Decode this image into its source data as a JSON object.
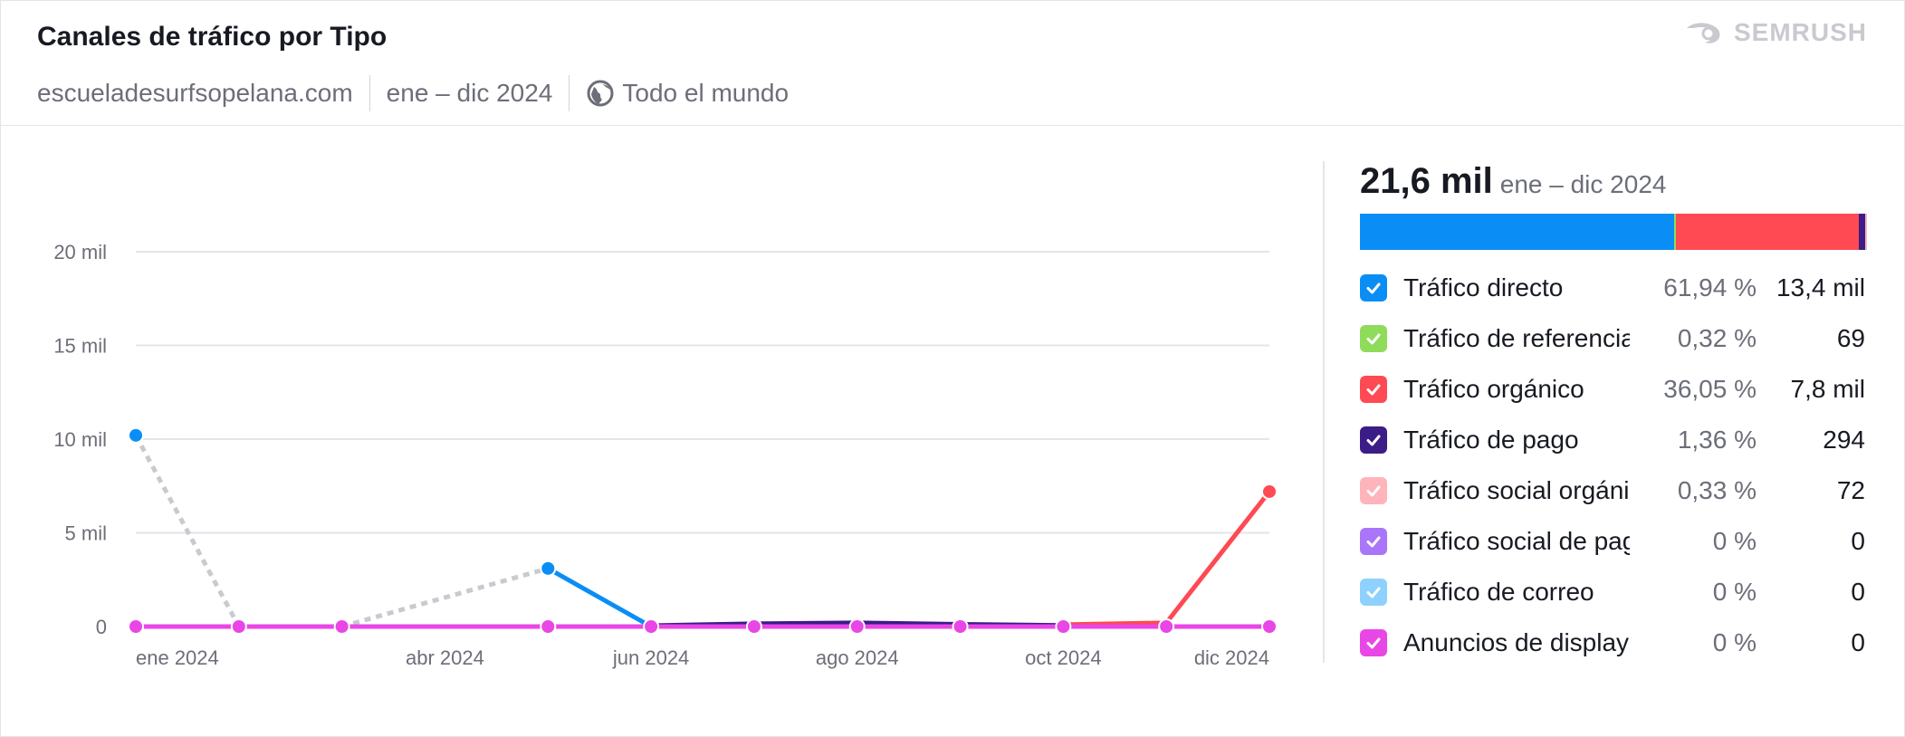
{
  "header": {
    "title": "Canales de tráfico por Tipo",
    "domain": "escueladesurfsopelana.com",
    "period": "ene – dic 2024",
    "region": "Todo el mundo",
    "brand": "SEMRUSH"
  },
  "summary": {
    "total": "21,6 mil",
    "period": "ene – dic 2024"
  },
  "legend": [
    {
      "name": "Tráfico directo",
      "pct": "61,94 %",
      "value": "13,4 mil",
      "color": "#0a8ef5",
      "share": 61.94
    },
    {
      "name": "Tráfico de referencia",
      "pct": "0,32 %",
      "value": "69",
      "color": "#8fdb5a",
      "share": 0.32
    },
    {
      "name": "Tráfico orgánico",
      "pct": "36,05 %",
      "value": "7,8 mil",
      "color": "#ff4953",
      "share": 36.05
    },
    {
      "name": "Tráfico de pago",
      "pct": "1,36 %",
      "value": "294",
      "color": "#3c1c86",
      "share": 1.36
    },
    {
      "name": "Tráfico social orgánico",
      "pct": "0,33 %",
      "value": "72",
      "color": "#ffb3ba",
      "share": 0.33
    },
    {
      "name": "Tráfico social de pago",
      "pct": "0 %",
      "value": "0",
      "color": "#a975fb",
      "share": 0
    },
    {
      "name": "Tráfico de correo",
      "pct": "0 %",
      "value": "0",
      "color": "#8ed1ff",
      "share": 0
    },
    {
      "name": "Anuncios de display",
      "pct": "0 %",
      "value": "0",
      "color": "#e946e6",
      "share": 0
    }
  ],
  "chart_data": {
    "type": "line",
    "x": [
      "ene 2024",
      "feb 2024",
      "mar 2024",
      "abr 2024",
      "may 2024",
      "jun 2024",
      "jul 2024",
      "ago 2024",
      "sep 2024",
      "oct 2024",
      "nov 2024",
      "dic 2024"
    ],
    "x_tick_labels": [
      "ene 2024",
      "abr 2024",
      "jun 2024",
      "ago 2024",
      "oct 2024",
      "dic 2024"
    ],
    "y_tick_labels": [
      "0",
      "5 mil",
      "10 mil",
      "15 mil",
      "20 mil"
    ],
    "ylim": [
      0,
      20000
    ],
    "grid": true,
    "series": [
      {
        "name": "Tráfico directo",
        "color": "#0a8ef5",
        "values": [
          10200,
          null,
          null,
          null,
          3100,
          0,
          null,
          null,
          null,
          null,
          null,
          null
        ],
        "markers": [
          0,
          4
        ]
      },
      {
        "name": "Tráfico orgánico",
        "color": "#ff4953",
        "values": [
          null,
          null,
          null,
          null,
          null,
          null,
          null,
          null,
          null,
          100,
          200,
          7200
        ],
        "markers": [
          11
        ]
      },
      {
        "name": "Tráfico de pago",
        "color": "#3c1c86",
        "values": [
          null,
          null,
          null,
          null,
          null,
          50,
          150,
          200,
          120,
          60,
          null,
          null
        ],
        "markers": []
      },
      {
        "name": "Anuncios de display",
        "color": "#e946e6",
        "values": [
          0,
          0,
          0,
          0,
          0,
          0,
          0,
          0,
          0,
          0,
          0,
          0
        ],
        "markers": [
          0,
          1,
          2,
          4,
          5,
          6,
          7,
          8,
          9,
          10,
          11
        ]
      }
    ],
    "missing_data_segments": [
      {
        "from_x": "ene 2024",
        "from_y": 10200,
        "to_x": "feb 2024",
        "to_y": 0
      },
      {
        "from_x": "feb 2024",
        "from_y": 0,
        "to_x": "mar 2024",
        "to_y": 0
      },
      {
        "from_x": "mar 2024",
        "from_y": 0,
        "to_x": "may 2024",
        "to_y": 3100
      },
      {
        "from_x": "ene 2024",
        "from_y": 0,
        "to_x": "abr 2024",
        "to_y": 0
      },
      {
        "from_x": "may 2024",
        "from_y": 0,
        "to_x": "jun 2024",
        "to_y": 0
      }
    ],
    "missing_color": "#c9cacf"
  }
}
